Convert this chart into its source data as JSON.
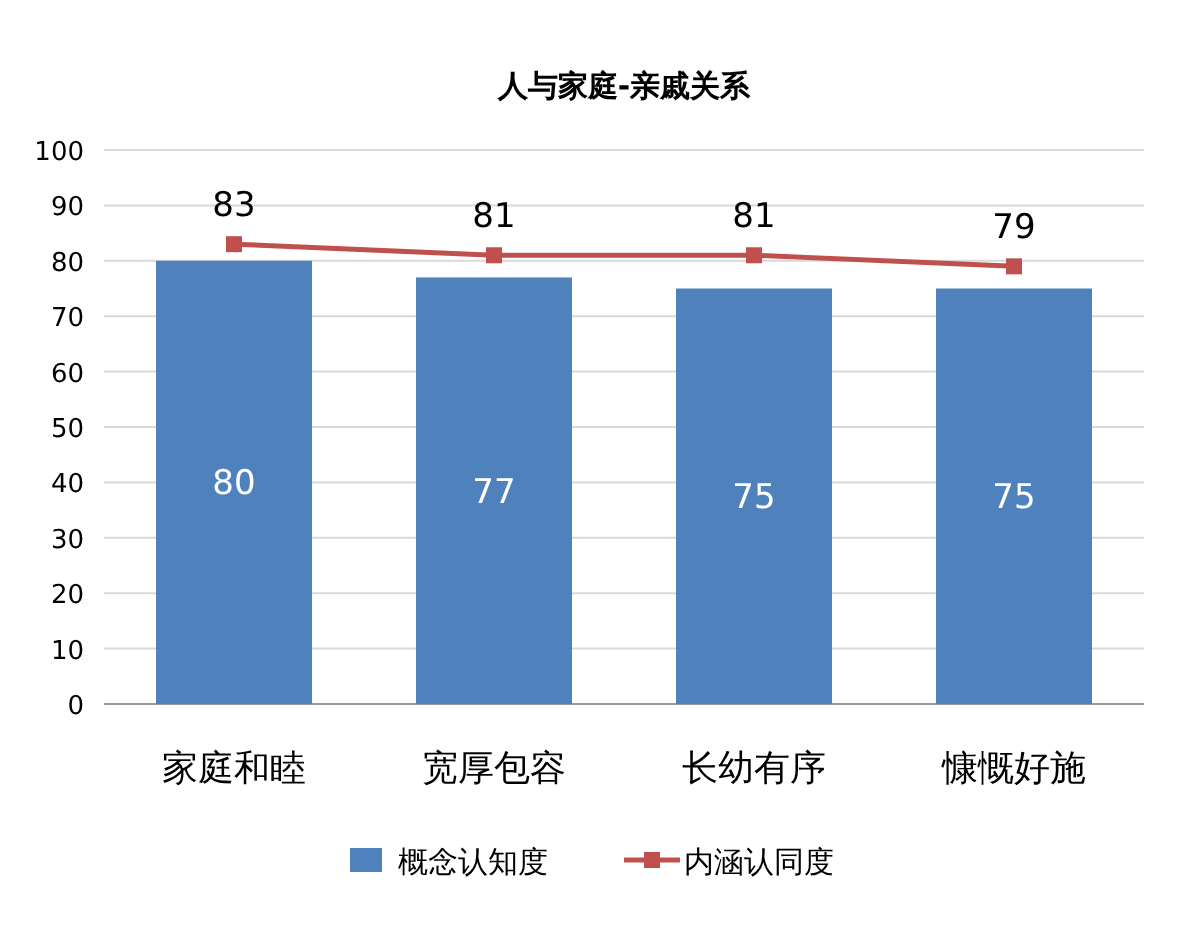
{
  "chart_data": {
    "type": "bar",
    "title": "人与家庭-亲戚关系",
    "categories": [
      "家庭和睦",
      "宽厚包容",
      "长幼有序",
      "慷慨好施"
    ],
    "series": [
      {
        "name": "概念认知度",
        "color": "#4f81bd",
        "values": [
          80,
          77,
          75,
          75
        ]
      },
      {
        "name": "内涵认同度",
        "color": "#c0504d",
        "type": "line",
        "values": [
          83,
          81,
          81,
          79
        ]
      }
    ],
    "ylim": [
      0,
      100
    ],
    "yticks": [
      0,
      10,
      20,
      30,
      40,
      50,
      60,
      70,
      80,
      90,
      100
    ],
    "grid": "y",
    "legend": "bottom",
    "marker": "square",
    "data_labels": true
  }
}
